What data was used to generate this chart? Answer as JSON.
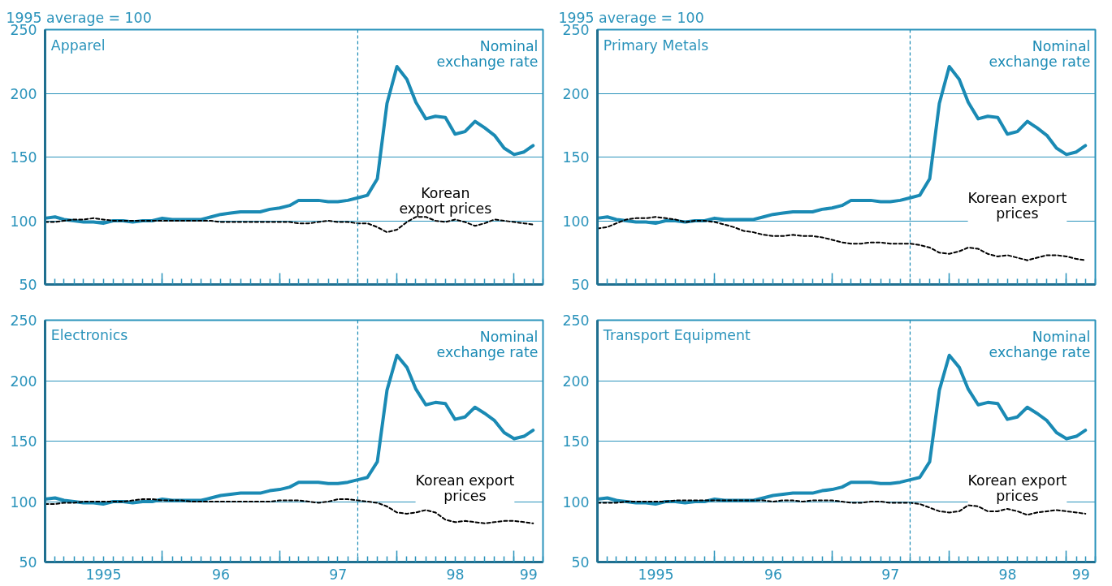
{
  "chart_data": [
    {
      "type": "line",
      "title": "Apparel",
      "ylabel": "1995 average = 100",
      "x": [
        "1995-01",
        "1995-02",
        "1995-03",
        "1995-04",
        "1995-05",
        "1995-06",
        "1995-07",
        "1995-08",
        "1995-09",
        "1995-10",
        "1995-11",
        "1995-12",
        "1996-01",
        "1996-02",
        "1996-03",
        "1996-04",
        "1996-05",
        "1996-06",
        "1996-07",
        "1996-08",
        "1996-09",
        "1996-10",
        "1996-11",
        "1996-12",
        "1997-01",
        "1997-02",
        "1997-03",
        "1997-04",
        "1997-05",
        "1997-06",
        "1997-07",
        "1997-08",
        "1997-09",
        "1997-10",
        "1997-11",
        "1997-12",
        "1998-01",
        "1998-02",
        "1998-03",
        "1998-04",
        "1998-05",
        "1998-06",
        "1998-07",
        "1998-08",
        "1998-09",
        "1998-10",
        "1998-11",
        "1998-12",
        "1999-01",
        "1999-02",
        "1999-03"
      ],
      "xlim": [
        "1995-01",
        "1999-04"
      ],
      "xticks": [
        {
          "value": "1996-01",
          "label": null
        },
        {
          "value": "1997-01",
          "label": null
        },
        {
          "value": "1998-01",
          "label": null
        },
        {
          "value": "1999-01",
          "label": null
        }
      ],
      "ylim": [
        50,
        250
      ],
      "yticks": [
        50,
        100,
        150,
        200,
        250
      ],
      "grid": "y",
      "legend": false,
      "tick_labels": "y",
      "ref_lines": [
        {
          "axis": "x",
          "value": "1997-09",
          "color": "#1a8ab4",
          "line_style": "dashed"
        }
      ],
      "series": [
        {
          "name": "Nominal\nexchange rate",
          "color": "#1a8ab4",
          "line_style": "solid",
          "values": [
            102,
            103,
            101,
            100,
            99,
            99,
            98,
            100,
            100,
            99,
            100,
            100,
            102,
            101,
            101,
            101,
            101,
            103,
            105,
            106,
            107,
            107,
            107,
            109,
            110,
            112,
            116,
            116,
            116,
            115,
            115,
            116,
            118,
            120,
            133,
            192,
            221,
            211,
            193,
            180,
            182,
            181,
            168,
            170,
            178,
            173,
            167,
            157,
            152,
            154,
            159
          ]
        },
        {
          "name": "Korean\nexport prices",
          "color": "#000000",
          "line_style": "dashed",
          "values": [
            99,
            99,
            100,
            101,
            101,
            102,
            101,
            100,
            100,
            100,
            100,
            100,
            100,
            100,
            100,
            100,
            100,
            100,
            99,
            99,
            99,
            99,
            99,
            99,
            99,
            99,
            98,
            98,
            99,
            100,
            99,
            99,
            98,
            98,
            95,
            91,
            93,
            99,
            103,
            103,
            100,
            99,
            101,
            99,
            96,
            98,
            101,
            100,
            99,
            98,
            97
          ]
        }
      ]
    },
    {
      "type": "line",
      "title": "Primary Metals",
      "ylabel": "1995 average = 100",
      "x": [
        "1995-01",
        "1995-02",
        "1995-03",
        "1995-04",
        "1995-05",
        "1995-06",
        "1995-07",
        "1995-08",
        "1995-09",
        "1995-10",
        "1995-11",
        "1995-12",
        "1996-01",
        "1996-02",
        "1996-03",
        "1996-04",
        "1996-05",
        "1996-06",
        "1996-07",
        "1996-08",
        "1996-09",
        "1996-10",
        "1996-11",
        "1996-12",
        "1997-01",
        "1997-02",
        "1997-03",
        "1997-04",
        "1997-05",
        "1997-06",
        "1997-07",
        "1997-08",
        "1997-09",
        "1997-10",
        "1997-11",
        "1997-12",
        "1998-01",
        "1998-02",
        "1998-03",
        "1998-04",
        "1998-05",
        "1998-06",
        "1998-07",
        "1998-08",
        "1998-09",
        "1998-10",
        "1998-11",
        "1998-12",
        "1999-01",
        "1999-02",
        "1999-03"
      ],
      "xlim": [
        "1995-01",
        "1999-04"
      ],
      "xticks": [
        {
          "value": "1996-01",
          "label": null
        },
        {
          "value": "1997-01",
          "label": null
        },
        {
          "value": "1998-01",
          "label": null
        },
        {
          "value": "1999-01",
          "label": null
        }
      ],
      "ylim": [
        50,
        250
      ],
      "yticks": [
        50,
        100,
        150,
        200,
        250
      ],
      "grid": "y",
      "legend": false,
      "tick_labels": "y",
      "ref_lines": [
        {
          "axis": "x",
          "value": "1997-09",
          "color": "#1a8ab4",
          "line_style": "dashed"
        }
      ],
      "series": [
        {
          "name": "Nominal\nexchange rate",
          "color": "#1a8ab4",
          "line_style": "solid",
          "values": [
            102,
            103,
            101,
            100,
            99,
            99,
            98,
            100,
            100,
            99,
            100,
            100,
            102,
            101,
            101,
            101,
            101,
            103,
            105,
            106,
            107,
            107,
            107,
            109,
            110,
            112,
            116,
            116,
            116,
            115,
            115,
            116,
            118,
            120,
            133,
            192,
            221,
            211,
            193,
            180,
            182,
            181,
            168,
            170,
            178,
            173,
            167,
            157,
            152,
            154,
            159
          ]
        },
        {
          "name": "Korean export\nprices",
          "color": "#000000",
          "line_style": "dashed",
          "values": [
            94,
            95,
            98,
            101,
            102,
            102,
            103,
            102,
            101,
            99,
            100,
            100,
            99,
            97,
            95,
            92,
            91,
            89,
            88,
            88,
            89,
            88,
            88,
            87,
            85,
            83,
            82,
            82,
            83,
            83,
            82,
            82,
            82,
            81,
            79,
            75,
            74,
            76,
            79,
            78,
            74,
            72,
            73,
            71,
            69,
            71,
            73,
            73,
            72,
            70,
            69
          ]
        }
      ]
    },
    {
      "type": "line",
      "title": "Electronics",
      "x": [
        "1995-01",
        "1995-02",
        "1995-03",
        "1995-04",
        "1995-05",
        "1995-06",
        "1995-07",
        "1995-08",
        "1995-09",
        "1995-10",
        "1995-11",
        "1995-12",
        "1996-01",
        "1996-02",
        "1996-03",
        "1996-04",
        "1996-05",
        "1996-06",
        "1996-07",
        "1996-08",
        "1996-09",
        "1996-10",
        "1996-11",
        "1996-12",
        "1997-01",
        "1997-02",
        "1997-03",
        "1997-04",
        "1997-05",
        "1997-06",
        "1997-07",
        "1997-08",
        "1997-09",
        "1997-10",
        "1997-11",
        "1997-12",
        "1998-01",
        "1998-02",
        "1998-03",
        "1998-04",
        "1998-05",
        "1998-06",
        "1998-07",
        "1998-08",
        "1998-09",
        "1998-10",
        "1998-11",
        "1998-12",
        "1999-01",
        "1999-02",
        "1999-03"
      ],
      "xlim": [
        "1995-01",
        "1999-04"
      ],
      "xticks": [
        {
          "value": "1995-07-02",
          "label": "1995"
        },
        {
          "value": "1996-01",
          "label": null
        },
        {
          "value": "1996-07-02",
          "label": "96"
        },
        {
          "value": "1997-01",
          "label": null
        },
        {
          "value": "1997-07-02",
          "label": "97"
        },
        {
          "value": "1998-01",
          "label": null
        },
        {
          "value": "1998-07-02",
          "label": "98"
        },
        {
          "value": "1999-01",
          "label": null
        },
        {
          "value": "1999-02-15",
          "label": "99"
        }
      ],
      "ylim": [
        50,
        250
      ],
      "yticks": [
        50,
        100,
        150,
        200,
        250
      ],
      "grid": "y",
      "legend": false,
      "ref_lines": [
        {
          "axis": "x",
          "value": "1997-09",
          "color": "#1a8ab4",
          "line_style": "dashed"
        }
      ],
      "series": [
        {
          "name": "Nominal\nexchange rate",
          "color": "#1a8ab4",
          "line_style": "solid",
          "values": [
            102,
            103,
            101,
            100,
            99,
            99,
            98,
            100,
            100,
            99,
            100,
            100,
            102,
            101,
            101,
            101,
            101,
            103,
            105,
            106,
            107,
            107,
            107,
            109,
            110,
            112,
            116,
            116,
            116,
            115,
            115,
            116,
            118,
            120,
            133,
            192,
            221,
            211,
            193,
            180,
            182,
            181,
            168,
            170,
            178,
            173,
            167,
            157,
            152,
            154,
            159
          ]
        },
        {
          "name": "Korean export\nprices",
          "color": "#000000",
          "line_style": "dashed",
          "values": [
            98,
            98,
            99,
            99,
            100,
            100,
            100,
            100,
            100,
            101,
            102,
            102,
            101,
            101,
            101,
            100,
            100,
            100,
            100,
            100,
            100,
            100,
            100,
            100,
            101,
            101,
            101,
            100,
            99,
            100,
            102,
            102,
            101,
            100,
            99,
            96,
            91,
            90,
            91,
            93,
            91,
            85,
            83,
            84,
            83,
            82,
            83,
            84,
            84,
            83,
            82
          ]
        }
      ]
    },
    {
      "type": "line",
      "title": "Transport Equipment",
      "x": [
        "1995-01",
        "1995-02",
        "1995-03",
        "1995-04",
        "1995-05",
        "1995-06",
        "1995-07",
        "1995-08",
        "1995-09",
        "1995-10",
        "1995-11",
        "1995-12",
        "1996-01",
        "1996-02",
        "1996-03",
        "1996-04",
        "1996-05",
        "1996-06",
        "1996-07",
        "1996-08",
        "1996-09",
        "1996-10",
        "1996-11",
        "1996-12",
        "1997-01",
        "1997-02",
        "1997-03",
        "1997-04",
        "1997-05",
        "1997-06",
        "1997-07",
        "1997-08",
        "1997-09",
        "1997-10",
        "1997-11",
        "1997-12",
        "1998-01",
        "1998-02",
        "1998-03",
        "1998-04",
        "1998-05",
        "1998-06",
        "1998-07",
        "1998-08",
        "1998-09",
        "1998-10",
        "1998-11",
        "1998-12",
        "1999-01",
        "1999-02",
        "1999-03"
      ],
      "xlim": [
        "1995-01",
        "1999-04"
      ],
      "xticks": [
        {
          "value": "1995-07-02",
          "label": "1995"
        },
        {
          "value": "1996-01",
          "label": null
        },
        {
          "value": "1996-07-02",
          "label": "96"
        },
        {
          "value": "1997-01",
          "label": null
        },
        {
          "value": "1997-07-02",
          "label": "97"
        },
        {
          "value": "1998-01",
          "label": null
        },
        {
          "value": "1998-07-02",
          "label": "98"
        },
        {
          "value": "1999-01",
          "label": null
        },
        {
          "value": "1999-02-15",
          "label": "99"
        }
      ],
      "ylim": [
        50,
        250
      ],
      "yticks": [
        50,
        100,
        150,
        200,
        250
      ],
      "grid": "y",
      "legend": false,
      "ref_lines": [
        {
          "axis": "x",
          "value": "1997-09",
          "color": "#1a8ab4",
          "line_style": "dashed"
        }
      ],
      "series": [
        {
          "name": "Nominal\nexchange rate",
          "color": "#1a8ab4",
          "line_style": "solid",
          "values": [
            102,
            103,
            101,
            100,
            99,
            99,
            98,
            100,
            100,
            99,
            100,
            100,
            102,
            101,
            101,
            101,
            101,
            103,
            105,
            106,
            107,
            107,
            107,
            109,
            110,
            112,
            116,
            116,
            116,
            115,
            115,
            116,
            118,
            120,
            133,
            192,
            221,
            211,
            193,
            180,
            182,
            181,
            168,
            170,
            178,
            173,
            167,
            157,
            152,
            154,
            159
          ]
        },
        {
          "name": "Korean export\nprices",
          "color": "#000000",
          "line_style": "dashed",
          "values": [
            99,
            99,
            99,
            100,
            100,
            100,
            100,
            100,
            101,
            101,
            101,
            101,
            101,
            101,
            101,
            101,
            101,
            101,
            100,
            101,
            101,
            100,
            101,
            101,
            101,
            100,
            99,
            99,
            100,
            100,
            99,
            99,
            99,
            98,
            95,
            92,
            91,
            92,
            97,
            96,
            92,
            92,
            94,
            92,
            89,
            91,
            92,
            93,
            92,
            91,
            90
          ]
        }
      ]
    }
  ]
}
